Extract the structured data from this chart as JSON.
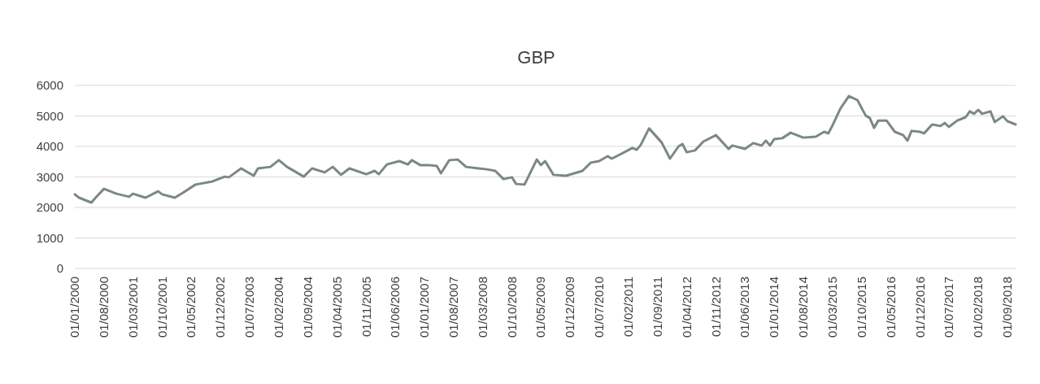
{
  "chart_data": {
    "type": "line",
    "title": "GBP",
    "grid": "y",
    "x": [
      "2000-01",
      "2000-02",
      "2000-05",
      "2000-06",
      "2000-08",
      "2000-11",
      "2001-02",
      "2001-03",
      "2001-06",
      "2001-09",
      "2001-10",
      "2002-01",
      "2002-03",
      "2002-06",
      "2002-10",
      "2003-01",
      "2003-02",
      "2003-05",
      "2003-08",
      "2003-09",
      "2003-12",
      "2004-02",
      "2004-04",
      "2004-08",
      "2004-10",
      "2005-01",
      "2005-03",
      "2005-05",
      "2005-07",
      "2005-11",
      "2006-01",
      "2006-02",
      "2006-04",
      "2006-07",
      "2006-09",
      "2006-10",
      "2006-12",
      "2007-02",
      "2007-04",
      "2007-05",
      "2007-07",
      "2007-09",
      "2007-11",
      "2008-02",
      "2008-04",
      "2008-06",
      "2008-08",
      "2008-10",
      "2008-11",
      "2009-01",
      "2009-04",
      "2009-05",
      "2009-06",
      "2009-08",
      "2009-11",
      "2010-01",
      "2010-03",
      "2010-05",
      "2010-07",
      "2010-09",
      "2010-10",
      "2011-01",
      "2011-03",
      "2011-04",
      "2011-05",
      "2011-07",
      "2011-10",
      "2011-12",
      "2012-02",
      "2012-03",
      "2012-04",
      "2012-06",
      "2012-08",
      "2012-11",
      "2013-02",
      "2013-03",
      "2013-06",
      "2013-08",
      "2013-10",
      "2013-11",
      "2013-12",
      "2014-01",
      "2014-03",
      "2014-05",
      "2014-08",
      "2014-11",
      "2015-01",
      "2015-02",
      "2015-03",
      "2015-05",
      "2015-07",
      "2015-09",
      "2015-11",
      "2015-12",
      "2016-01",
      "2016-02",
      "2016-04",
      "2016-06",
      "2016-08",
      "2016-09",
      "2016-10",
      "2016-12",
      "2017-01",
      "2017-03",
      "2017-05",
      "2017-06",
      "2017-07",
      "2017-09",
      "2017-11",
      "2017-12",
      "2018-01",
      "2018-02",
      "2018-03",
      "2018-05",
      "2018-06",
      "2018-08",
      "2018-09",
      "2018-11"
    ],
    "series": [
      {
        "color": "#7b8787",
        "values": [
          2430,
          2320,
          2160,
          2320,
          2610,
          2450,
          2350,
          2450,
          2320,
          2530,
          2430,
          2320,
          2480,
          2750,
          2850,
          3010,
          2990,
          3280,
          3040,
          3280,
          3330,
          3550,
          3330,
          3010,
          3280,
          3150,
          3330,
          3070,
          3280,
          3090,
          3200,
          3090,
          3410,
          3520,
          3410,
          3550,
          3390,
          3390,
          3360,
          3120,
          3550,
          3570,
          3330,
          3280,
          3250,
          3200,
          2930,
          2990,
          2770,
          2750,
          3570,
          3390,
          3520,
          3070,
          3040,
          3120,
          3200,
          3470,
          3520,
          3680,
          3600,
          3810,
          3950,
          3890,
          4050,
          4590,
          4130,
          3600,
          4000,
          4080,
          3810,
          3870,
          4160,
          4370,
          3920,
          4030,
          3920,
          4110,
          4030,
          4190,
          4030,
          4240,
          4270,
          4450,
          4290,
          4320,
          4480,
          4430,
          4670,
          5250,
          5650,
          5520,
          5010,
          4930,
          4610,
          4850,
          4850,
          4480,
          4370,
          4190,
          4510,
          4480,
          4430,
          4720,
          4670,
          4770,
          4640,
          4850,
          4960,
          5150,
          5070,
          5200,
          5070,
          5150,
          4800,
          4990,
          4830,
          4720
        ]
      }
    ],
    "xlim": [
      "2000-01",
      "2018-11"
    ],
    "xticks": [
      {
        "value": "2000-01",
        "label": "01/01/2000"
      },
      {
        "value": "2000-08",
        "label": "01/08/2000"
      },
      {
        "value": "2001-03",
        "label": "01/03/2001"
      },
      {
        "value": "2001-10",
        "label": "01/10/2001"
      },
      {
        "value": "2002-05",
        "label": "01/05/2002"
      },
      {
        "value": "2002-12",
        "label": "01/12/2002"
      },
      {
        "value": "2003-07",
        "label": "01/07/2003"
      },
      {
        "value": "2004-02",
        "label": "01/02/2004"
      },
      {
        "value": "2004-09",
        "label": "01/09/2004"
      },
      {
        "value": "2005-04",
        "label": "01/04/2005"
      },
      {
        "value": "2005-11",
        "label": "01/11/2005"
      },
      {
        "value": "2006-06",
        "label": "01/06/2006"
      },
      {
        "value": "2007-01",
        "label": "01/01/2007"
      },
      {
        "value": "2007-08",
        "label": "01/08/2007"
      },
      {
        "value": "2008-03",
        "label": "01/03/2008"
      },
      {
        "value": "2008-10",
        "label": "01/10/2008"
      },
      {
        "value": "2009-05",
        "label": "01/05/2009"
      },
      {
        "value": "2009-12",
        "label": "01/12/2009"
      },
      {
        "value": "2010-07",
        "label": "01/07/2010"
      },
      {
        "value": "2011-02",
        "label": "01/02/2011"
      },
      {
        "value": "2011-09",
        "label": "01/09/2011"
      },
      {
        "value": "2012-04",
        "label": "01/04/2012"
      },
      {
        "value": "2012-11",
        "label": "01/11/2012"
      },
      {
        "value": "2013-06",
        "label": "01/06/2013"
      },
      {
        "value": "2014-01",
        "label": "01/01/2014"
      },
      {
        "value": "2014-08",
        "label": "01/08/2014"
      },
      {
        "value": "2015-03",
        "label": "01/03/2015"
      },
      {
        "value": "2015-10",
        "label": "01/10/2015"
      },
      {
        "value": "2016-05",
        "label": "01/05/2016"
      },
      {
        "value": "2016-12",
        "label": "01/12/2016"
      },
      {
        "value": "2017-07",
        "label": "01/07/2017"
      },
      {
        "value": "2018-02",
        "label": "01/02/2018"
      },
      {
        "value": "2018-09",
        "label": "01/09/2018"
      }
    ],
    "ylim": [
      0,
      6000
    ],
    "yticks": [
      0,
      1000,
      2000,
      3000,
      4000,
      5000,
      6000
    ]
  }
}
